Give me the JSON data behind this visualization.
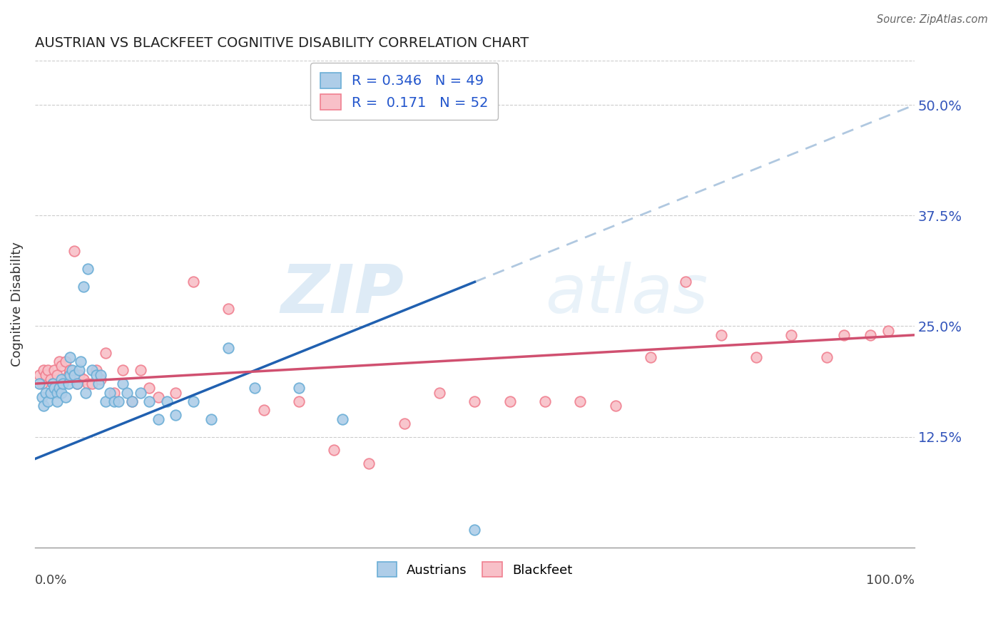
{
  "title": "AUSTRIAN VS BLACKFEET COGNITIVE DISABILITY CORRELATION CHART",
  "source": "Source: ZipAtlas.com",
  "ylabel": "Cognitive Disability",
  "ytick_vals": [
    0.125,
    0.25,
    0.375,
    0.5
  ],
  "ytick_labels": [
    "12.5%",
    "25.0%",
    "37.5%",
    "50.0%"
  ],
  "xmin": 0.0,
  "xmax": 1.0,
  "ymin": 0.0,
  "ymax": 0.55,
  "color_austrians_edge": "#6baed6",
  "color_blackfeet_edge": "#f08090",
  "color_austrians_fill": "#aecde8",
  "color_blackfeet_fill": "#f8c0c8",
  "trend_blue": "#2060b0",
  "trend_pink": "#d05070",
  "trend_dashed": "#b0c8e0",
  "background": "#ffffff",
  "watermark_zip": "ZIP",
  "watermark_atlas": "atlas",
  "legend_R1": "R = 0.346",
  "legend_N1": "N = 49",
  "legend_R2": "R =  0.171",
  "legend_N2": "N = 52",
  "austrians_x": [
    0.005,
    0.008,
    0.01,
    0.012,
    0.015,
    0.018,
    0.02,
    0.022,
    0.025,
    0.025,
    0.028,
    0.03,
    0.03,
    0.032,
    0.035,
    0.038,
    0.04,
    0.04,
    0.042,
    0.045,
    0.048,
    0.05,
    0.052,
    0.055,
    0.058,
    0.06,
    0.065,
    0.07,
    0.072,
    0.075,
    0.08,
    0.085,
    0.09,
    0.095,
    0.1,
    0.105,
    0.11,
    0.12,
    0.13,
    0.14,
    0.15,
    0.16,
    0.18,
    0.2,
    0.22,
    0.25,
    0.3,
    0.35,
    0.5
  ],
  "austrians_y": [
    0.185,
    0.17,
    0.16,
    0.175,
    0.165,
    0.175,
    0.185,
    0.18,
    0.175,
    0.165,
    0.18,
    0.175,
    0.19,
    0.185,
    0.17,
    0.185,
    0.215,
    0.195,
    0.2,
    0.195,
    0.185,
    0.2,
    0.21,
    0.295,
    0.175,
    0.315,
    0.2,
    0.195,
    0.185,
    0.195,
    0.165,
    0.175,
    0.165,
    0.165,
    0.185,
    0.175,
    0.165,
    0.175,
    0.165,
    0.145,
    0.165,
    0.15,
    0.165,
    0.145,
    0.225,
    0.18,
    0.18,
    0.145,
    0.02
  ],
  "blackfeet_x": [
    0.005,
    0.008,
    0.01,
    0.012,
    0.015,
    0.018,
    0.02,
    0.022,
    0.025,
    0.028,
    0.03,
    0.035,
    0.038,
    0.04,
    0.045,
    0.048,
    0.05,
    0.055,
    0.06,
    0.065,
    0.07,
    0.075,
    0.08,
    0.09,
    0.1,
    0.11,
    0.12,
    0.13,
    0.14,
    0.16,
    0.18,
    0.22,
    0.26,
    0.3,
    0.34,
    0.38,
    0.42,
    0.46,
    0.5,
    0.54,
    0.58,
    0.62,
    0.66,
    0.7,
    0.74,
    0.78,
    0.82,
    0.86,
    0.9,
    0.92,
    0.95,
    0.97
  ],
  "blackfeet_y": [
    0.195,
    0.185,
    0.2,
    0.195,
    0.2,
    0.19,
    0.185,
    0.2,
    0.195,
    0.21,
    0.205,
    0.21,
    0.195,
    0.2,
    0.335,
    0.185,
    0.195,
    0.19,
    0.185,
    0.185,
    0.2,
    0.19,
    0.22,
    0.175,
    0.2,
    0.165,
    0.2,
    0.18,
    0.17,
    0.175,
    0.3,
    0.27,
    0.155,
    0.165,
    0.11,
    0.095,
    0.14,
    0.175,
    0.165,
    0.165,
    0.165,
    0.165,
    0.16,
    0.215,
    0.3,
    0.24,
    0.215,
    0.24,
    0.215,
    0.24,
    0.24,
    0.245
  ]
}
